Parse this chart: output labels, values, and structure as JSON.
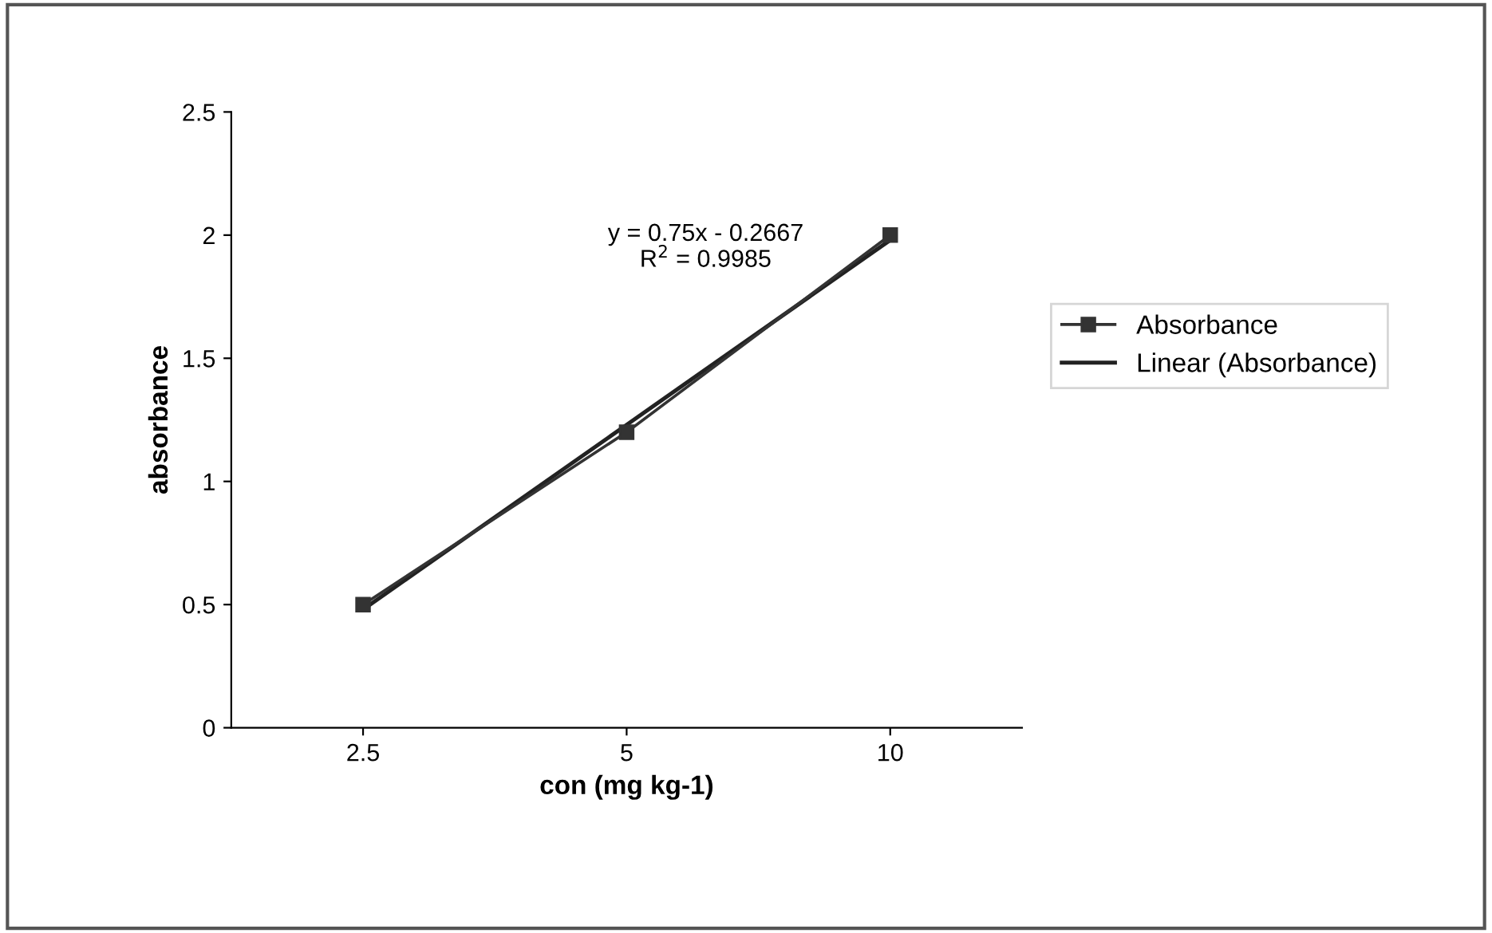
{
  "chart_data": {
    "type": "line",
    "xlabel": "con (mg kg-1)",
    "ylabel": "absorbance",
    "categories": [
      "2.5",
      "5",
      "10"
    ],
    "series": [
      {
        "name": "Absorbance",
        "color": "#333333",
        "values": [
          0.5,
          1.2,
          2.0
        ],
        "marker": "square"
      },
      {
        "name": "Linear (Absorbance)",
        "color": "#222222",
        "values": [
          0.48,
          1.23,
          1.98
        ],
        "marker": "none"
      }
    ],
    "ylim": [
      0,
      2.5
    ],
    "yticks": [
      0,
      0.5,
      1,
      1.5,
      2,
      2.5
    ],
    "grid": false,
    "legend": "right",
    "annotations": [
      "y = 0.75x - 0.2667\nR$^{2}$ = 0.9985"
    ]
  }
}
